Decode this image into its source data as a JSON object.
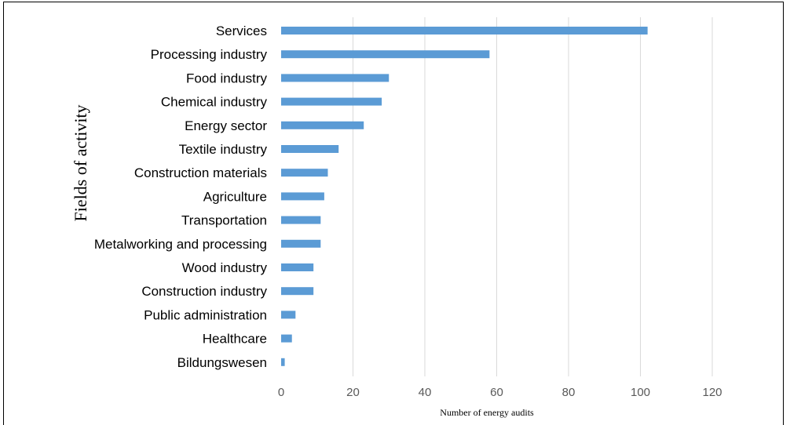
{
  "chart_data": {
    "type": "bar",
    "orientation": "horizontal",
    "categories": [
      "Services",
      "Processing industry",
      "Food industry",
      "Chemical industry",
      "Energy sector",
      "Textile industry",
      "Construction materials",
      "Agriculture",
      "Transportation",
      "Metalworking and processing",
      "Wood industry",
      "Construction industry",
      "Public administration",
      "Healthcare",
      "Bildungswesen"
    ],
    "values": [
      102,
      58,
      30,
      28,
      23,
      16,
      13,
      12,
      11,
      11,
      9,
      9,
      4,
      3,
      1
    ],
    "xlabel": "Number of energy audits",
    "ylabel": "Fields of activity",
    "xlim": [
      0,
      120
    ],
    "xticks": [
      "0",
      "20",
      "40",
      "60",
      "80",
      "100",
      "120"
    ],
    "grid": "vertical",
    "bar_color": "#5b9bd5",
    "grid_color": "#d9d9d9"
  }
}
